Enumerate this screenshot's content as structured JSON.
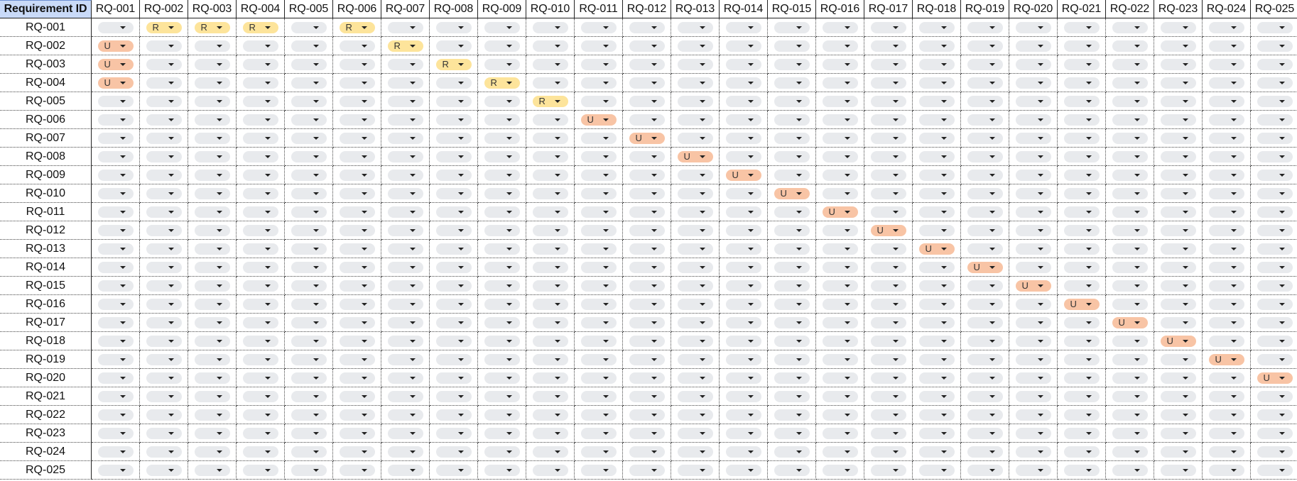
{
  "sheet": {
    "corner_label": "Requirement ID",
    "columns": [
      "RQ-001",
      "RQ-002",
      "RQ-003",
      "RQ-004",
      "RQ-005",
      "RQ-006",
      "RQ-007",
      "RQ-008",
      "RQ-009",
      "RQ-010",
      "RQ-011",
      "RQ-012",
      "RQ-013",
      "RQ-014",
      "RQ-015",
      "RQ-016",
      "RQ-017",
      "RQ-018",
      "RQ-019",
      "RQ-020",
      "RQ-021",
      "RQ-022",
      "RQ-023",
      "RQ-024",
      "RQ-025"
    ],
    "rows": [
      {
        "id": "RQ-001",
        "cells": [
          "",
          "R",
          "R",
          "R",
          "",
          "R",
          "",
          "",
          "",
          "",
          "",
          "",
          "",
          "",
          "",
          "",
          "",
          "",
          "",
          "",
          "",
          "",
          "",
          "",
          ""
        ]
      },
      {
        "id": "RQ-002",
        "cells": [
          "U",
          "",
          "",
          "",
          "",
          "",
          "R",
          "",
          "",
          "",
          "",
          "",
          "",
          "",
          "",
          "",
          "",
          "",
          "",
          "",
          "",
          "",
          "",
          "",
          ""
        ]
      },
      {
        "id": "RQ-003",
        "cells": [
          "U",
          "",
          "",
          "",
          "",
          "",
          "",
          "R",
          "",
          "",
          "",
          "",
          "",
          "",
          "",
          "",
          "",
          "",
          "",
          "",
          "",
          "",
          "",
          "",
          ""
        ]
      },
      {
        "id": "RQ-004",
        "cells": [
          "U",
          "",
          "",
          "",
          "",
          "",
          "",
          "",
          "R",
          "",
          "",
          "",
          "",
          "",
          "",
          "",
          "",
          "",
          "",
          "",
          "",
          "",
          "",
          "",
          ""
        ]
      },
      {
        "id": "RQ-005",
        "cells": [
          "",
          "",
          "",
          "",
          "",
          "",
          "",
          "",
          "",
          "R",
          "",
          "",
          "",
          "",
          "",
          "",
          "",
          "",
          "",
          "",
          "",
          "",
          "",
          "",
          ""
        ]
      },
      {
        "id": "RQ-006",
        "cells": [
          "",
          "",
          "",
          "",
          "",
          "",
          "",
          "",
          "",
          "",
          "U",
          "",
          "",
          "",
          "",
          "",
          "",
          "",
          "",
          "",
          "",
          "",
          "",
          "",
          ""
        ]
      },
      {
        "id": "RQ-007",
        "cells": [
          "",
          "",
          "",
          "",
          "",
          "",
          "",
          "",
          "",
          "",
          "",
          "U",
          "",
          "",
          "",
          "",
          "",
          "",
          "",
          "",
          "",
          "",
          "",
          "",
          ""
        ]
      },
      {
        "id": "RQ-008",
        "cells": [
          "",
          "",
          "",
          "",
          "",
          "",
          "",
          "",
          "",
          "",
          "",
          "",
          "U",
          "",
          "",
          "",
          "",
          "",
          "",
          "",
          "",
          "",
          "",
          "",
          ""
        ]
      },
      {
        "id": "RQ-009",
        "cells": [
          "",
          "",
          "",
          "",
          "",
          "",
          "",
          "",
          "",
          "",
          "",
          "",
          "",
          "U",
          "",
          "",
          "",
          "",
          "",
          "",
          "",
          "",
          "",
          "",
          ""
        ]
      },
      {
        "id": "RQ-010",
        "cells": [
          "",
          "",
          "",
          "",
          "",
          "",
          "",
          "",
          "",
          "",
          "",
          "",
          "",
          "",
          "U",
          "",
          "",
          "",
          "",
          "",
          "",
          "",
          "",
          "",
          ""
        ]
      },
      {
        "id": "RQ-011",
        "cells": [
          "",
          "",
          "",
          "",
          "",
          "",
          "",
          "",
          "",
          "",
          "",
          "",
          "",
          "",
          "",
          "U",
          "",
          "",
          "",
          "",
          "",
          "",
          "",
          "",
          ""
        ]
      },
      {
        "id": "RQ-012",
        "cells": [
          "",
          "",
          "",
          "",
          "",
          "",
          "",
          "",
          "",
          "",
          "",
          "",
          "",
          "",
          "",
          "",
          "U",
          "",
          "",
          "",
          "",
          "",
          "",
          "",
          ""
        ]
      },
      {
        "id": "RQ-013",
        "cells": [
          "",
          "",
          "",
          "",
          "",
          "",
          "",
          "",
          "",
          "",
          "",
          "",
          "",
          "",
          "",
          "",
          "",
          "U",
          "",
          "",
          "",
          "",
          "",
          "",
          ""
        ]
      },
      {
        "id": "RQ-014",
        "cells": [
          "",
          "",
          "",
          "",
          "",
          "",
          "",
          "",
          "",
          "",
          "",
          "",
          "",
          "",
          "",
          "",
          "",
          "",
          "U",
          "",
          "",
          "",
          "",
          "",
          ""
        ]
      },
      {
        "id": "RQ-015",
        "cells": [
          "",
          "",
          "",
          "",
          "",
          "",
          "",
          "",
          "",
          "",
          "",
          "",
          "",
          "",
          "",
          "",
          "",
          "",
          "",
          "U",
          "",
          "",
          "",
          "",
          ""
        ]
      },
      {
        "id": "RQ-016",
        "cells": [
          "",
          "",
          "",
          "",
          "",
          "",
          "",
          "",
          "",
          "",
          "",
          "",
          "",
          "",
          "",
          "",
          "",
          "",
          "",
          "",
          "U",
          "",
          "",
          "",
          ""
        ]
      },
      {
        "id": "RQ-017",
        "cells": [
          "",
          "",
          "",
          "",
          "",
          "",
          "",
          "",
          "",
          "",
          "",
          "",
          "",
          "",
          "",
          "",
          "",
          "",
          "",
          "",
          "",
          "U",
          "",
          "",
          ""
        ]
      },
      {
        "id": "RQ-018",
        "cells": [
          "",
          "",
          "",
          "",
          "",
          "",
          "",
          "",
          "",
          "",
          "",
          "",
          "",
          "",
          "",
          "",
          "",
          "",
          "",
          "",
          "",
          "",
          "U",
          "",
          ""
        ]
      },
      {
        "id": "RQ-019",
        "cells": [
          "",
          "",
          "",
          "",
          "",
          "",
          "",
          "",
          "",
          "",
          "",
          "",
          "",
          "",
          "",
          "",
          "",
          "",
          "",
          "",
          "",
          "",
          "",
          "U",
          ""
        ]
      },
      {
        "id": "RQ-020",
        "cells": [
          "",
          "",
          "",
          "",
          "",
          "",
          "",
          "",
          "",
          "",
          "",
          "",
          "",
          "",
          "",
          "",
          "",
          "",
          "",
          "",
          "",
          "",
          "",
          "",
          "U"
        ]
      },
      {
        "id": "RQ-021",
        "cells": [
          "",
          "",
          "",
          "",
          "",
          "",
          "",
          "",
          "",
          "",
          "",
          "",
          "",
          "",
          "",
          "",
          "",
          "",
          "",
          "",
          "",
          "",
          "",
          "",
          ""
        ]
      },
      {
        "id": "RQ-022",
        "cells": [
          "",
          "",
          "",
          "",
          "",
          "",
          "",
          "",
          "",
          "",
          "",
          "",
          "",
          "",
          "",
          "",
          "",
          "",
          "",
          "",
          "",
          "",
          "",
          "",
          ""
        ]
      },
      {
        "id": "RQ-023",
        "cells": [
          "",
          "",
          "",
          "",
          "",
          "",
          "",
          "",
          "",
          "",
          "",
          "",
          "",
          "",
          "",
          "",
          "",
          "",
          "",
          "",
          "",
          "",
          "",
          "",
          ""
        ]
      },
      {
        "id": "RQ-024",
        "cells": [
          "",
          "",
          "",
          "",
          "",
          "",
          "",
          "",
          "",
          "",
          "",
          "",
          "",
          "",
          "",
          "",
          "",
          "",
          "",
          "",
          "",
          "",
          "",
          "",
          ""
        ]
      },
      {
        "id": "RQ-025",
        "cells": [
          "",
          "",
          "",
          "",
          "",
          "",
          "",
          "",
          "",
          "",
          "",
          "",
          "",
          "",
          "",
          "",
          "",
          "",
          "",
          "",
          "",
          "",
          "",
          "",
          ""
        ]
      }
    ]
  },
  "icons": {
    "dropdown_caret": "chevron-down-icon"
  },
  "colors": {
    "header_highlight": "#c9daf8",
    "chip_empty": "#e8eaed",
    "chip_R": "#fde49b",
    "chip_U": "#f8c4a5"
  }
}
